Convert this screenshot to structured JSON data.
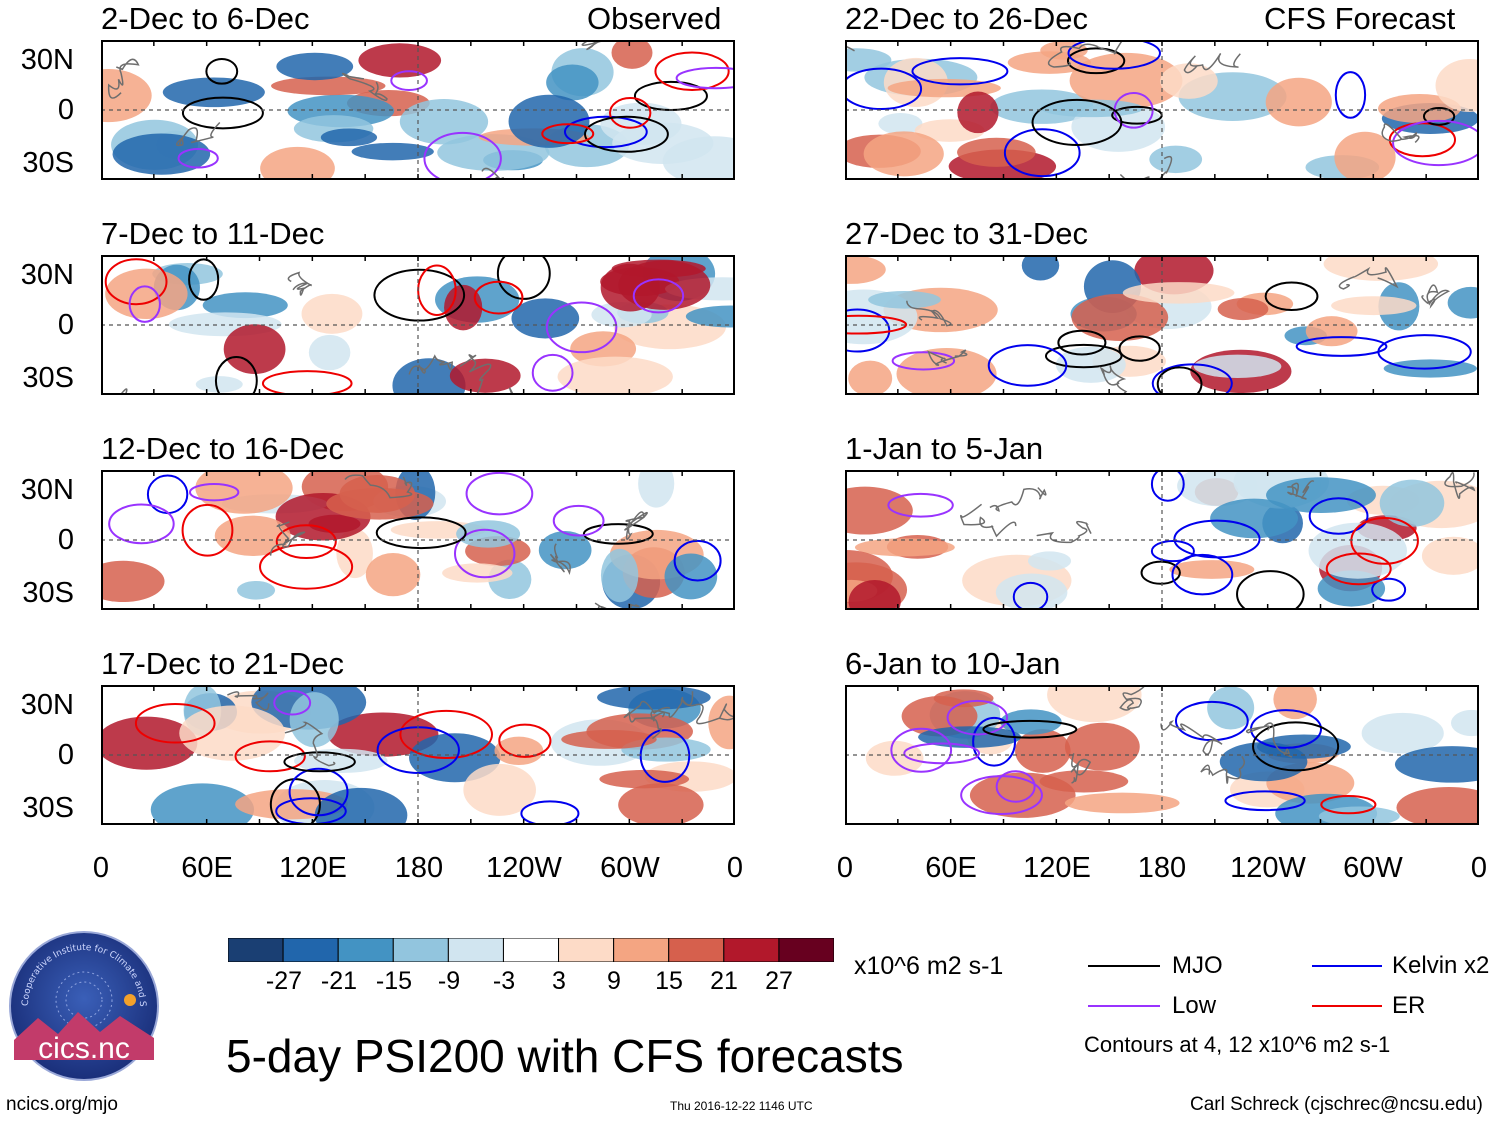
{
  "column_titles": {
    "observed": "Observed",
    "forecast": "CFS Forecast"
  },
  "panels_left": [
    {
      "period": "2-Dec to 6-Dec"
    },
    {
      "period": "7-Dec to 11-Dec"
    },
    {
      "period": "12-Dec to 16-Dec"
    },
    {
      "period": "17-Dec to 21-Dec"
    }
  ],
  "panels_right": [
    {
      "period": "22-Dec to 26-Dec"
    },
    {
      "period": "27-Dec to 31-Dec"
    },
    {
      "period": "1-Jan to 5-Jan"
    },
    {
      "period": "6-Jan to 10-Jan"
    }
  ],
  "lat_labels": [
    "30N",
    "0",
    "30S"
  ],
  "lon_labels": [
    "0",
    "60E",
    "120E",
    "180",
    "120W",
    "60W",
    "0"
  ],
  "colorbar": {
    "labels": [
      "-27",
      "-21",
      "-15",
      "-9",
      "-3",
      "3",
      "9",
      "15",
      "21",
      "27"
    ],
    "colors": [
      "#1a3f73",
      "#2166ac",
      "#4393c3",
      "#92c5de",
      "#d1e5f0",
      "#ffffff",
      "#fddbc7",
      "#f4a582",
      "#d6604d",
      "#b2182b",
      "#67001f"
    ],
    "units": "x10^6 m2 s-1"
  },
  "legend": {
    "items": [
      {
        "label": "MJO",
        "color": "#000000"
      },
      {
        "label": "Kelvin x2",
        "color": "#0000ee"
      },
      {
        "label": "Low",
        "color": "#9933ff"
      },
      {
        "label": "ER",
        "color": "#ee0000"
      }
    ],
    "note": "Contours at 4, 12 x10^6 m2 s-1"
  },
  "main_title": "5-day PSI200 with CFS forecasts",
  "logo_text": "cics.nc",
  "logo_arc_text": "Cooperative Institute for Climate and Satellites",
  "footer": {
    "left": "ncics.org/mjo",
    "center": "Thu 2016-12-22 1146 UTC",
    "right": "Carl Schreck (cjschrec@ncsu.edu)"
  }
}
